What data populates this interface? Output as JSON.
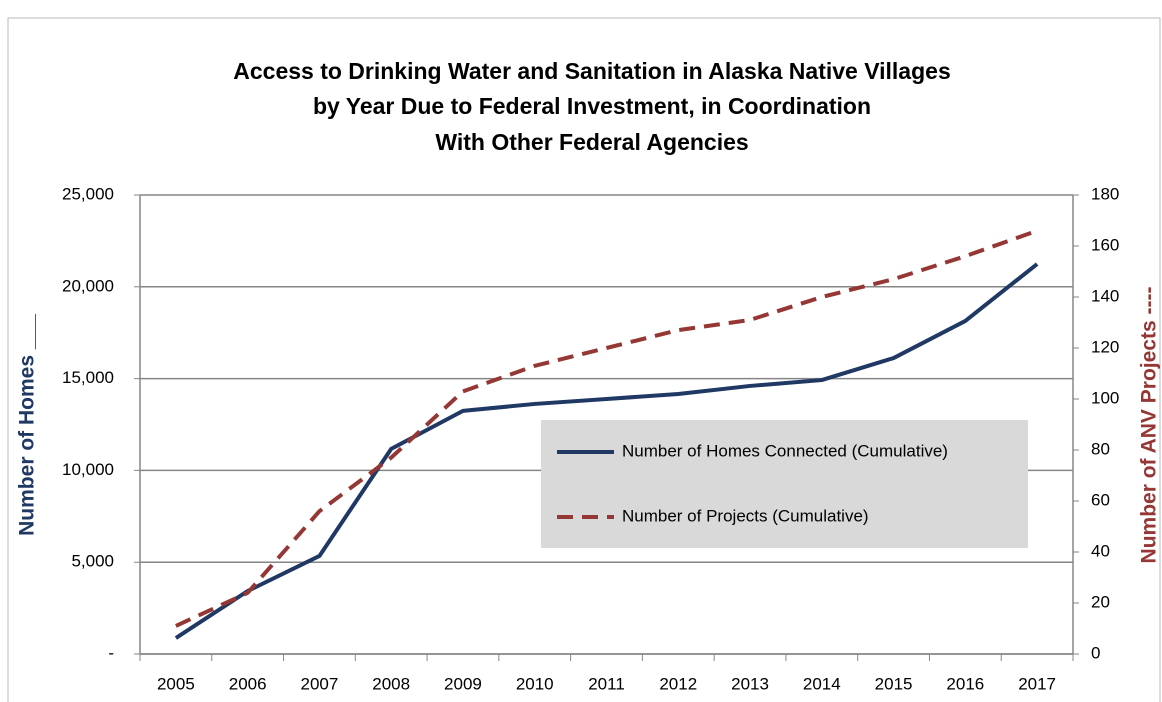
{
  "chart_data": {
    "type": "line",
    "title": [
      "Access to Drinking Water and Sanitation in Alaska Native Villages",
      "by Year Due to Federal Investment, in Coordination",
      "With Other Federal Agencies"
    ],
    "y_label": "Number of Homes ___",
    "y2_label": "Number of ANV Projects ----",
    "categories": [
      "2005",
      "2006",
      "2007",
      "2008",
      "2009",
      "2010",
      "2011",
      "2012",
      "2013",
      "2014",
      "2015",
      "2016",
      "2017"
    ],
    "series": [
      {
        "name": "Number of Homes Connected (Cumulative)",
        "color": "#1f3864",
        "dash": false,
        "axis": "y",
        "values": [
          870,
          3430,
          5340,
          11170,
          13240,
          13620,
          13890,
          14160,
          14600,
          14920,
          16120,
          18140,
          21240
        ]
      },
      {
        "name": "Number of Projects (Cumulative)",
        "color": "#953735",
        "dash": true,
        "axis": "y2",
        "values": [
          11,
          24,
          56,
          77,
          103,
          113,
          120,
          127,
          131,
          140,
          147,
          156,
          166
        ]
      }
    ],
    "ylim": [
      0,
      25000
    ],
    "yticks": [
      {
        "value": 0,
        "label": "-"
      },
      {
        "value": 5000,
        "label": "5,000"
      },
      {
        "value": 10000,
        "label": "10,000"
      },
      {
        "value": 15000,
        "label": "15,000"
      },
      {
        "value": 20000,
        "label": "20,000"
      },
      {
        "value": 25000,
        "label": "25,000"
      }
    ],
    "y2lim": [
      0,
      180
    ],
    "y2ticks": [
      0,
      20,
      40,
      60,
      80,
      100,
      120,
      140,
      160,
      180
    ],
    "grid": true
  }
}
